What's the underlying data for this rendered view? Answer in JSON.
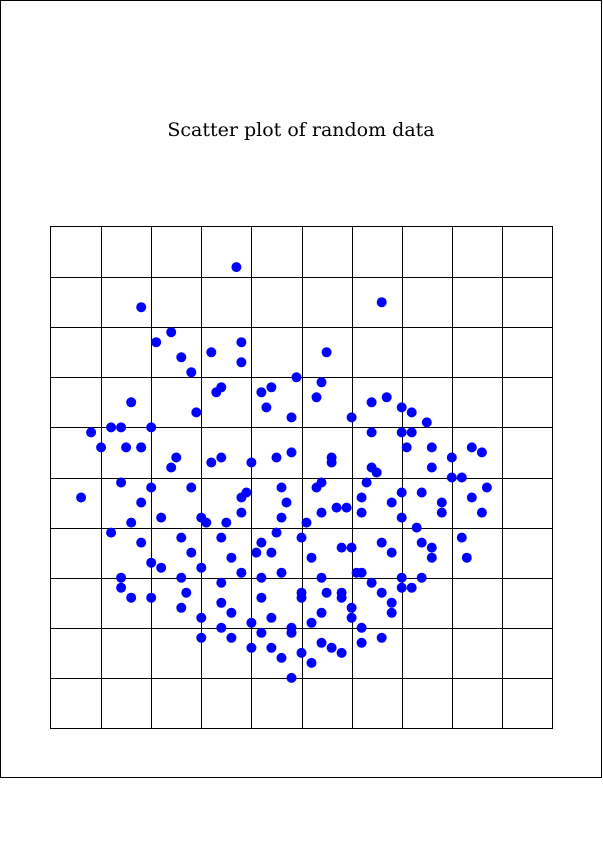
{
  "chart_data": {
    "type": "scatter",
    "title": "Scatter plot of random data",
    "xlabel": "",
    "ylabel": "",
    "xlim": [
      -5,
      5
    ],
    "ylim": [
      -5,
      5
    ],
    "grid": true,
    "legend": "none",
    "marker_color": "#0000ff",
    "x_gridlines": [
      -4,
      -3,
      -2,
      -1,
      0,
      1,
      2,
      3,
      4
    ],
    "y_gridlines": [
      -4,
      -3,
      -2,
      -1,
      0,
      1,
      2,
      3,
      4
    ],
    "x": [
      -1.3,
      -3.2,
      -2.6,
      -2.9,
      -2.2,
      -1.2,
      1.6,
      -2.4,
      -1.8,
      -1.2,
      -0.8,
      -0.7,
      -0.6,
      0.4,
      0.3,
      -0.2,
      1.0,
      1.4,
      2.0,
      2.2,
      2.5,
      2.2,
      -1.6,
      -3.0,
      -3.6,
      -4.0,
      -4.2,
      -3.2,
      -2.5,
      -1.6,
      -0.5,
      0.6,
      1.4,
      2.0,
      2.6,
      3.0,
      3.4,
      3.6,
      3.0,
      2.6,
      3.2,
      2.0,
      1.4,
      0.6,
      -0.2,
      -1.0,
      -1.8,
      -2.6,
      -3.0,
      -3.2,
      -3.4,
      -3.8,
      -4.4,
      -3.6,
      -3.2,
      -2.2,
      -1.2,
      -0.4,
      0.4,
      1.2,
      1.8,
      2.4,
      2.8,
      3.4,
      2.8,
      2.0,
      1.2,
      0.4,
      -0.4,
      -1.2,
      -2.0,
      -2.8,
      -3.4,
      -3.8,
      -3.2,
      -2.4,
      -1.6,
      -0.8,
      0.0,
      0.8,
      1.6,
      2.4,
      3.2,
      3.6,
      2.6,
      1.8,
      1.0,
      0.2,
      -0.6,
      -1.4,
      -2.2,
      -3.0,
      -3.6,
      -2.8,
      -2.0,
      -1.2,
      -0.4,
      0.4,
      1.2,
      2.0,
      2.6,
      2.2,
      1.6,
      0.8,
      0.0,
      -0.8,
      -1.6,
      -2.4,
      -2.0,
      -1.4,
      -0.6,
      0.2,
      1.0,
      1.8,
      1.2,
      0.4,
      -0.2,
      -1.0,
      -1.6,
      -3.4,
      -3.6,
      -3.0,
      -2.4,
      -1.6,
      -0.8,
      0.0,
      0.8,
      1.4,
      2.0,
      2.4,
      1.8,
      1.0,
      0.4,
      -0.2,
      -0.8,
      -1.4,
      -2.0,
      -0.6,
      0.0,
      0.6,
      1.2,
      1.6,
      0.8,
      0.2,
      -0.4,
      -1.0,
      -0.2,
      0.5,
      1.1,
      -0.9,
      -1.5,
      -0.3,
      0.3,
      0.9,
      1.3,
      -1.1,
      -0.5,
      0.1,
      0.7,
      1.5,
      2.1,
      -2.1,
      -1.7,
      -0.1,
      0.5,
      1.7,
      2.3,
      -2.3,
      -1.9,
      3.3,
      3.7,
      -3.5
    ],
    "y": [
      4.2,
      3.4,
      2.9,
      2.7,
      2.1,
      2.3,
      3.5,
      2.4,
      2.5,
      2.7,
      1.7,
      1.4,
      1.8,
      1.9,
      1.6,
      1.2,
      1.2,
      1.5,
      1.4,
      1.3,
      1.1,
      0.9,
      1.8,
      1.0,
      1.0,
      0.6,
      0.9,
      0.6,
      0.4,
      0.4,
      0.4,
      0.4,
      0.9,
      0.9,
      0.6,
      0.4,
      0.6,
      0.5,
      0.0,
      0.2,
      0.0,
      -0.3,
      0.2,
      0.3,
      0.5,
      0.3,
      0.3,
      0.2,
      -0.2,
      0.6,
      1.5,
      1.0,
      -0.4,
      -0.1,
      -0.5,
      -0.2,
      -0.4,
      -0.2,
      -0.1,
      -0.4,
      -0.5,
      -0.3,
      -0.5,
      -0.4,
      -0.7,
      -0.8,
      -0.7,
      -0.7,
      -0.8,
      -0.7,
      -0.8,
      -0.8,
      -0.9,
      -1.1,
      -1.3,
      -1.2,
      -1.2,
      -1.3,
      -1.2,
      -1.4,
      -1.3,
      -1.3,
      -1.2,
      -0.7,
      -1.4,
      -1.5,
      -1.4,
      -1.6,
      -1.5,
      -1.6,
      -1.5,
      -1.7,
      -2.0,
      -1.8,
      -1.8,
      -1.9,
      -1.9,
      -2.0,
      -1.9,
      -2.0,
      -1.6,
      -2.2,
      -2.3,
      -2.4,
      -2.3,
      -2.4,
      -2.5,
      -2.6,
      -2.8,
      -2.7,
      -2.8,
      -2.9,
      -2.8,
      -2.7,
      -3.0,
      -3.3,
      -3.1,
      -2.9,
      -3.0,
      -2.4,
      -2.2,
      -2.4,
      -2.0,
      -2.1,
      -2.0,
      -2.4,
      -2.3,
      -2.1,
      -2.2,
      -2.0,
      -2.5,
      -2.6,
      -2.7,
      -3.0,
      -3.1,
      -3.2,
      -3.2,
      -3.4,
      -3.5,
      -3.4,
      -3.3,
      -3.2,
      -3.5,
      -3.7,
      -3.6,
      -3.4,
      -4.0,
      -2.3,
      -1.9,
      -1.5,
      -0.9,
      -0.5,
      -0.2,
      -0.6,
      -0.1,
      -0.3,
      -1.1,
      -0.9,
      -0.6,
      0.1,
      0.6,
      1.3,
      1.7,
      2.0,
      2.5,
      1.6,
      -1.0,
      -2.3,
      -0.9,
      -1.6,
      -0.2,
      0.6
    ],
    "point_count_note": ""
  }
}
